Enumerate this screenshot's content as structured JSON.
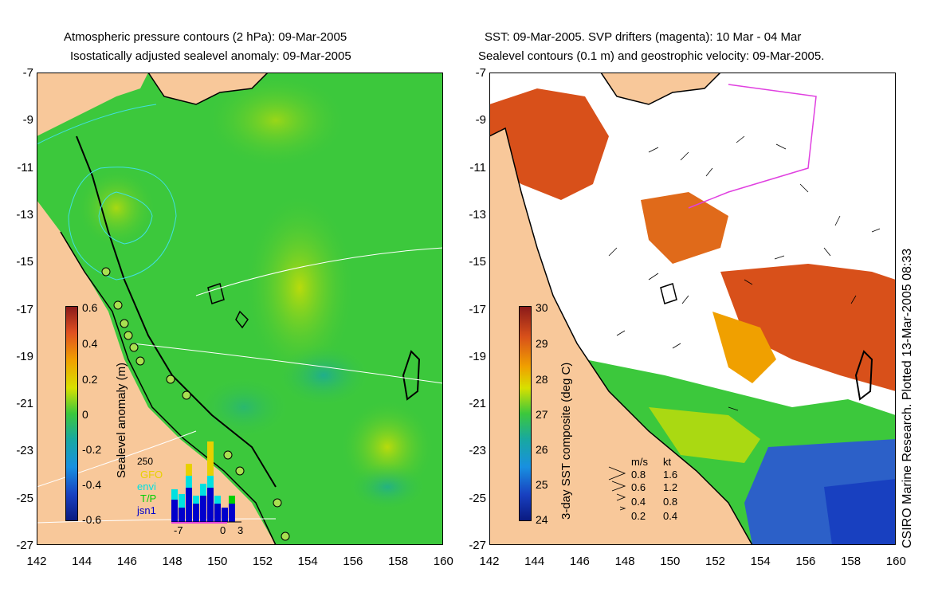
{
  "left_panel": {
    "title_line1": "Atmospheric pressure contours (2 hPa): 09-Mar-2005",
    "title_line2": "Isostatically adjusted sealevel anomaly: 09-Mar-2005",
    "colorbar_label": "Sealevel anomaly (m)",
    "colorbar_ticks": [
      "0.6",
      "0.4",
      "0.2",
      "0",
      "-0.2",
      "-0.4",
      "-0.6"
    ],
    "histogram": {
      "max_label": "250",
      "satellites": [
        {
          "name": "GFO",
          "color": "#e8d000"
        },
        {
          "name": "envi",
          "color": "#00e0e0"
        },
        {
          "name": "T/P",
          "color": "#00d000"
        },
        {
          "name": "jsn1",
          "color": "#0000cc"
        }
      ],
      "axis_ticks": [
        "-7",
        "0",
        "3"
      ]
    }
  },
  "right_panel": {
    "title_line1": "SST: 09-Mar-2005. SVP drifters (magenta): 10 Mar - 04 Mar",
    "title_line2": "Sealevel contours (0.1 m) and geostrophic velocity: 09-Mar-2005.",
    "colorbar_label": "3-day SST composite (deg C)",
    "colorbar_ticks": [
      "30",
      "29",
      "28",
      "27",
      "26",
      "25",
      "24"
    ],
    "velocity_legend": {
      "header_ms": "m/s",
      "header_kt": "kt",
      "rows": [
        {
          "ms": "0.8",
          "kt": "1.6"
        },
        {
          "ms": "0.6",
          "kt": "1.2"
        },
        {
          "ms": "0.4",
          "kt": "0.8"
        },
        {
          "ms": "0.2",
          "kt": "0.4"
        }
      ]
    },
    "credit": "CSIRO Marine Research. Plotted 13-Mar-2005 08:33"
  },
  "axes": {
    "lat_ticks": [
      "-7",
      "-9",
      "-11",
      "-13",
      "-15",
      "-17",
      "-19",
      "-21",
      "-23",
      "-25",
      "-27"
    ],
    "lon_ticks": [
      "142",
      "144",
      "146",
      "148",
      "150",
      "152",
      "154",
      "156",
      "158",
      "160"
    ]
  },
  "colors": {
    "land": "#f8c89a",
    "sla_bg": "#3cc83c",
    "sst_warm": "#d8501a",
    "sst_cool": "#2c60c8"
  }
}
